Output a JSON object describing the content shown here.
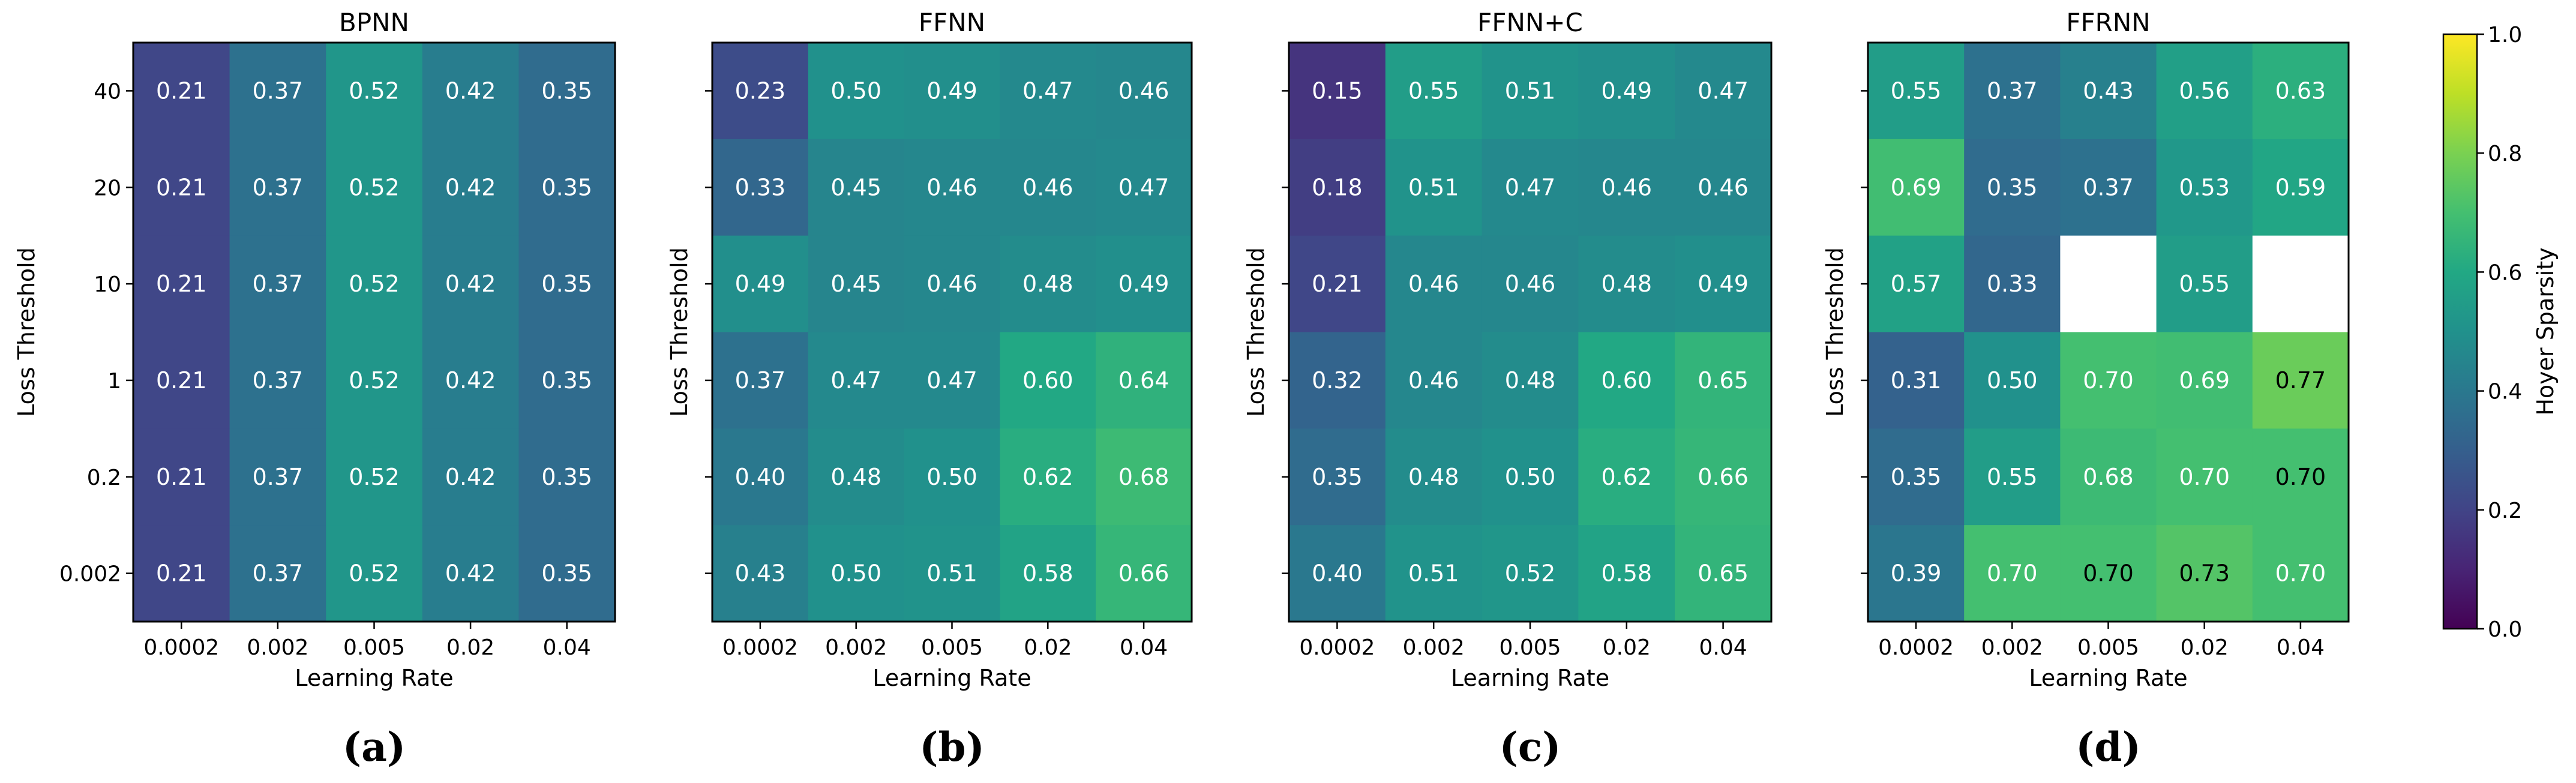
{
  "chart_data": [
    {
      "type": "heatmap",
      "panel_label": "(a)",
      "title": "BPNN",
      "xlabel": "Learning Rate",
      "ylabel": "Loss Threshold",
      "x_categories": [
        "0.0002",
        "0.002",
        "0.005",
        "0.02",
        "0.04"
      ],
      "y_categories": [
        "40",
        "20",
        "10",
        "1",
        "0.2",
        "0.002"
      ],
      "show_y_tick_labels": true,
      "values": [
        [
          0.21,
          0.37,
          0.52,
          0.42,
          0.35
        ],
        [
          0.21,
          0.37,
          0.52,
          0.42,
          0.35
        ],
        [
          0.21,
          0.37,
          0.52,
          0.42,
          0.35
        ],
        [
          0.21,
          0.37,
          0.52,
          0.42,
          0.35
        ],
        [
          0.21,
          0.37,
          0.52,
          0.42,
          0.35
        ],
        [
          0.21,
          0.37,
          0.52,
          0.42,
          0.35
        ]
      ]
    },
    {
      "type": "heatmap",
      "panel_label": "(b)",
      "title": "FFNN",
      "xlabel": "Learning Rate",
      "ylabel": "Loss Threshold",
      "x_categories": [
        "0.0002",
        "0.002",
        "0.005",
        "0.02",
        "0.04"
      ],
      "y_categories": [
        "40",
        "20",
        "10",
        "1",
        "0.2",
        "0.002"
      ],
      "show_y_tick_labels": false,
      "values": [
        [
          0.23,
          0.5,
          0.49,
          0.47,
          0.46
        ],
        [
          0.33,
          0.45,
          0.46,
          0.46,
          0.47
        ],
        [
          0.49,
          0.45,
          0.46,
          0.48,
          0.49
        ],
        [
          0.37,
          0.47,
          0.47,
          0.6,
          0.64
        ],
        [
          0.4,
          0.48,
          0.5,
          0.62,
          0.68
        ],
        [
          0.43,
          0.5,
          0.51,
          0.58,
          0.66
        ]
      ]
    },
    {
      "type": "heatmap",
      "panel_label": "(c)",
      "title": "FFNN+C",
      "xlabel": "Learning Rate",
      "ylabel": "Loss Threshold",
      "x_categories": [
        "0.0002",
        "0.002",
        "0.005",
        "0.02",
        "0.04"
      ],
      "y_categories": [
        "40",
        "20",
        "10",
        "1",
        "0.2",
        "0.002"
      ],
      "show_y_tick_labels": false,
      "values": [
        [
          0.15,
          0.55,
          0.51,
          0.49,
          0.47
        ],
        [
          0.18,
          0.51,
          0.47,
          0.46,
          0.46
        ],
        [
          0.21,
          0.46,
          0.46,
          0.48,
          0.49
        ],
        [
          0.32,
          0.46,
          0.48,
          0.6,
          0.65
        ],
        [
          0.35,
          0.48,
          0.5,
          0.62,
          0.66
        ],
        [
          0.4,
          0.51,
          0.52,
          0.58,
          0.65
        ]
      ]
    },
    {
      "type": "heatmap",
      "panel_label": "(d)",
      "title": "FFRNN",
      "xlabel": "Learning Rate",
      "ylabel": "Loss Threshold",
      "x_categories": [
        "0.0002",
        "0.002",
        "0.005",
        "0.02",
        "0.04"
      ],
      "y_categories": [
        "40",
        "20",
        "10",
        "1",
        "0.2",
        "0.002"
      ],
      "show_y_tick_labels": false,
      "values": [
        [
          0.55,
          0.37,
          0.43,
          0.56,
          0.63
        ],
        [
          0.69,
          0.35,
          0.37,
          0.53,
          0.59
        ],
        [
          0.57,
          0.33,
          null,
          0.55,
          null
        ],
        [
          0.31,
          0.5,
          0.7,
          0.69,
          0.77
        ],
        [
          0.35,
          0.55,
          0.68,
          0.7,
          0.7
        ],
        [
          0.39,
          0.7,
          0.7,
          0.73,
          0.7
        ]
      ],
      "dark_text": [
        [
          false,
          false,
          false,
          false,
          false
        ],
        [
          false,
          false,
          false,
          false,
          false
        ],
        [
          false,
          false,
          false,
          false,
          false
        ],
        [
          false,
          false,
          false,
          false,
          true
        ],
        [
          false,
          false,
          false,
          false,
          true
        ],
        [
          false,
          false,
          true,
          true,
          false
        ]
      ]
    }
  ],
  "colorbar": {
    "label": "Hoyer Sparsity",
    "colormap": "viridis",
    "range": [
      0.0,
      1.0
    ],
    "ticks": [
      "0.0",
      "0.2",
      "0.4",
      "0.6",
      "0.8",
      "1.0"
    ]
  },
  "missing_color": "#ffffff"
}
